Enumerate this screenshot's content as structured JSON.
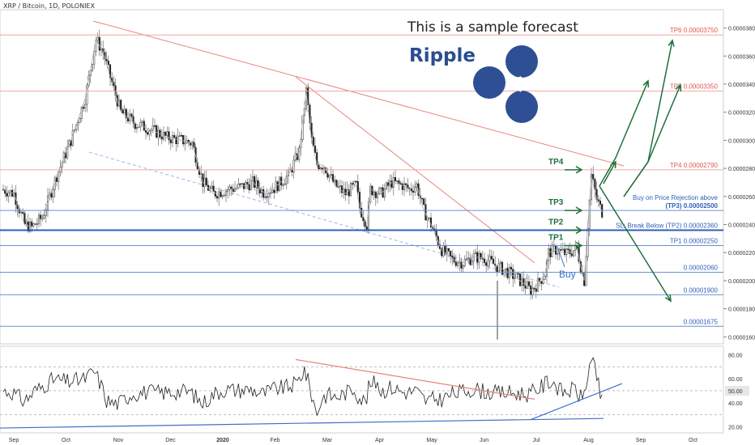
{
  "header": {
    "symbol": "XRP / Bitcoin, 1D, POLONIEX",
    "forecast_note": "This is a sample forecast",
    "brand": "Ripple"
  },
  "colors": {
    "candle_up": "#333333",
    "candle_down": "#222222",
    "level_red": "#f4a6a0",
    "level_blue": "#6a8fd6",
    "sl_line": "#2f5fb8",
    "arrow_green": "#1f6f3a",
    "resistance_red": "#e5857c",
    "support_blue": "#3b70c9",
    "rsi_line": "#222222",
    "logo_blue": "#2e4f93"
  },
  "chart_data": [
    {
      "type": "candlestick",
      "panel": "price",
      "ylim": [
        1.55e-05,
        3.93e-05
      ],
      "x_tick_labels": [
        "Sep",
        "Oct",
        "Nov",
        "Dec",
        "2020",
        "Feb",
        "Mar",
        "Apr",
        "May",
        "Jun",
        "Jul",
        "Aug",
        "Sep",
        "Oct"
      ],
      "y_axis_labels": [
        "0.00003800",
        "0.00003600",
        "0.00003400",
        "0.00003200",
        "0.00003000",
        "0.00002800",
        "0.00002600",
        "0.00002400",
        "0.00002200",
        "0.00002000",
        "0.00001800",
        "0.00001600"
      ],
      "y_axis_values": [
        3.8e-05,
        3.6e-05,
        3.4e-05,
        3.2e-05,
        3e-05,
        2.8e-05,
        2.6e-05,
        2.4e-05,
        2.2e-05,
        2e-05,
        1.8e-05,
        1.6e-05
      ],
      "close_path": [
        [
          0,
          2.65e-05
        ],
        [
          6,
          2.62e-05
        ],
        [
          12,
          2.4e-05
        ],
        [
          16,
          2.38e-05
        ],
        [
          22,
          2.45e-05
        ],
        [
          30,
          2.75e-05
        ],
        [
          38,
          3e-05
        ],
        [
          46,
          3.3e-05
        ],
        [
          52,
          3.72e-05
        ],
        [
          56,
          3.63e-05
        ],
        [
          60,
          3.45e-05
        ],
        [
          66,
          3.2e-05
        ],
        [
          74,
          3.12e-05
        ],
        [
          84,
          3.07e-05
        ],
        [
          92,
          3.02e-05
        ],
        [
          100,
          3e-05
        ],
        [
          106,
          2.98e-05
        ],
        [
          112,
          2.7e-05
        ],
        [
          118,
          2.62e-05
        ],
        [
          126,
          2.65e-05
        ],
        [
          134,
          2.67e-05
        ],
        [
          140,
          2.7e-05
        ],
        [
          146,
          2.63e-05
        ],
        [
          152,
          2.66e-05
        ],
        [
          160,
          2.75e-05
        ],
        [
          166,
          2.92e-05
        ],
        [
          170,
          3.35e-05
        ],
        [
          173,
          3e-05
        ],
        [
          176,
          2.83e-05
        ],
        [
          180,
          2.82e-05
        ],
        [
          186,
          2.68e-05
        ],
        [
          192,
          2.62e-05
        ],
        [
          198,
          2.68e-05
        ],
        [
          200,
          2.52e-05
        ],
        [
          204,
          2.4e-05
        ],
        [
          206,
          2.65e-05
        ],
        [
          212,
          2.62e-05
        ],
        [
          218,
          2.7e-05
        ],
        [
          224,
          2.68e-05
        ],
        [
          228,
          2.65e-05
        ],
        [
          232,
          2.68e-05
        ],
        [
          236,
          2.5e-05
        ],
        [
          240,
          2.4e-05
        ],
        [
          246,
          2.22e-05
        ],
        [
          252,
          2.15e-05
        ],
        [
          258,
          2.13e-05
        ],
        [
          264,
          2.17e-05
        ],
        [
          270,
          2.16e-05
        ],
        [
          276,
          2.11e-05
        ],
        [
          282,
          2.07e-05
        ],
        [
          288,
          2.02e-05
        ],
        [
          292,
          1.98e-05
        ],
        [
          296,
          1.93e-05
        ],
        [
          300,
          1.98e-05
        ],
        [
          304,
          2.05e-05
        ],
        [
          306,
          2.2e-05
        ],
        [
          310,
          2.22e-05
        ],
        [
          316,
          2.19e-05
        ],
        [
          322,
          2.23e-05
        ],
        [
          324,
          2.1e-05
        ],
        [
          326,
          2e-05
        ],
        [
          328,
          2.4e-05
        ],
        [
          330,
          2.75e-05
        ],
        [
          333,
          2.58e-05
        ],
        [
          336,
          2.49e-05
        ]
      ],
      "levels": [
        {
          "label": "TP6 0.00003750",
          "value": 3.75e-05,
          "color": "red"
        },
        {
          "label": "TP5 0.00003350",
          "value": 3.35e-05,
          "color": "red"
        },
        {
          "label": "TP4 0.00002790",
          "value": 2.79e-05,
          "color": "red"
        },
        {
          "label": "Buy on Price Rejection above",
          "label2": "(TP3) 0.00002500",
          "value": 2.5e-05,
          "color": "blue"
        },
        {
          "label": "SL: Break Below (TP2) 0.00002360",
          "value": 2.36e-05,
          "color": "sl"
        },
        {
          "label": "TP1 0.00002250",
          "value": 2.25e-05,
          "color": "blue"
        },
        {
          "label": "0.00002060",
          "value": 2.06e-05,
          "color": "blue"
        },
        {
          "label": "0.00001900",
          "value": 1.9e-05,
          "color": "blue"
        },
        {
          "label": "0.00001675",
          "value": 1.675e-05,
          "color": "blue"
        }
      ],
      "annotations": [
        {
          "text": "TP4",
          "value": 2.79e-05
        },
        {
          "text": "TP3",
          "value": 2.5e-05
        },
        {
          "text": "TP2",
          "value": 2.36e-05
        },
        {
          "text": "TP1",
          "value": 2.25e-05
        },
        {
          "text": "Buy",
          "value": 1.98e-05
        }
      ]
    },
    {
      "type": "line",
      "panel": "rsi",
      "ylim": [
        15,
        87
      ],
      "y_axis_labels": [
        "80.00",
        "60.00",
        "50.00",
        "40.00",
        "20.00"
      ],
      "y_axis_values": [
        80,
        60,
        50,
        40,
        20
      ]
    }
  ]
}
